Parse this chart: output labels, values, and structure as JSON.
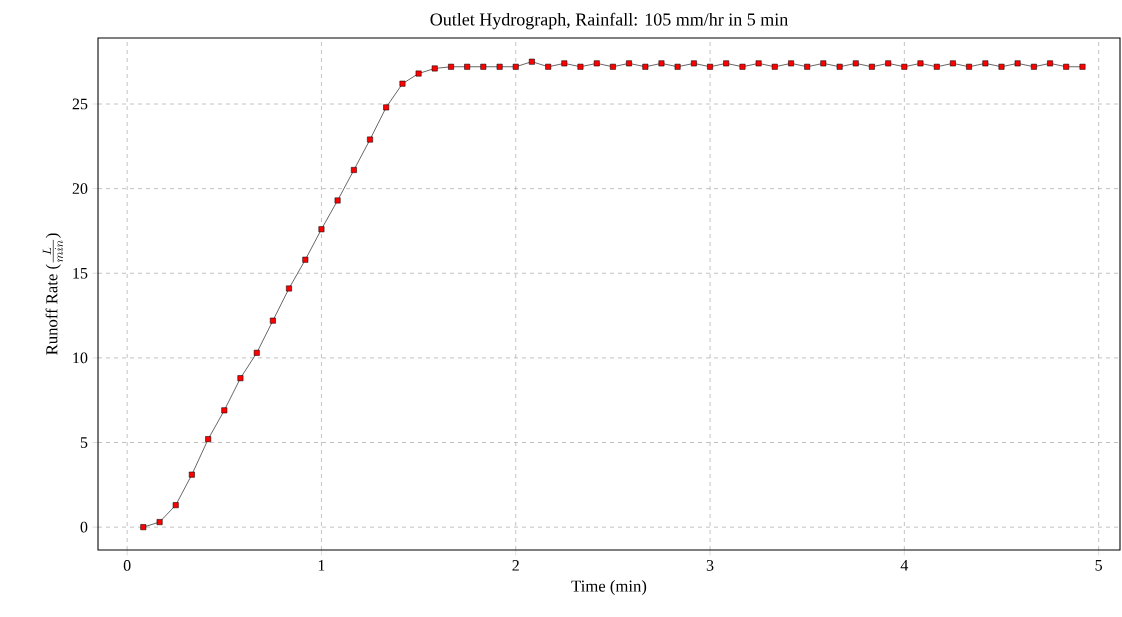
{
  "chart_data": {
    "type": "line",
    "title": "Outlet Hydrograph, Rainfall: 105 mm/hr in 5 min",
    "xlabel": "Time (min)",
    "ylabel": "\\text{Runoff Rate (}\\frac{L}{min}\\text{)}",
    "x": [
      0.083,
      0.167,
      0.25,
      0.333,
      0.417,
      0.5,
      0.583,
      0.667,
      0.75,
      0.833,
      0.917,
      1.0,
      1.083,
      1.167,
      1.25,
      1.333,
      1.417,
      1.5,
      1.583,
      1.667,
      1.75,
      1.833,
      1.917,
      2.0,
      2.083,
      2.167,
      2.25,
      2.333,
      2.417,
      2.5,
      2.583,
      2.667,
      2.75,
      2.833,
      2.917,
      3.0,
      3.083,
      3.167,
      3.25,
      3.333,
      3.417,
      3.5,
      3.583,
      3.667,
      3.75,
      3.833,
      3.917,
      4.0,
      4.083,
      4.167,
      4.25,
      4.333,
      4.417,
      4.5,
      4.583,
      4.667,
      4.75,
      4.833,
      4.917
    ],
    "series": [
      {
        "color": "#ff0000",
        "values": [
          0,
          0.3,
          1.3,
          3.1,
          5.2,
          6.9,
          8.8,
          10.3,
          12.2,
          14.1,
          15.8,
          17.6,
          19.3,
          21.1,
          22.9,
          24.8,
          26.2,
          26.8,
          27.1,
          27.2,
          27.2,
          27.2,
          27.2,
          27.2,
          27.5,
          27.2,
          27.4,
          27.2,
          27.4,
          27.2,
          27.4,
          27.2,
          27.4,
          27.2,
          27.4,
          27.2,
          27.4,
          27.2,
          27.4,
          27.2,
          27.4,
          27.2,
          27.4,
          27.2,
          27.4,
          27.2,
          27.4,
          27.2,
          27.4,
          27.2,
          27.4,
          27.2,
          27.4,
          27.2,
          27.4,
          27.2,
          27.4,
          27.2,
          27.2
        ]
      }
    ],
    "xlim": [
      -0.15,
      5.11
    ],
    "ylim": [
      -1.35,
      28.9
    ],
    "xticks": [
      0,
      1,
      2,
      3,
      4,
      5
    ],
    "yticks": [
      0,
      5,
      10,
      15,
      20,
      25
    ],
    "grid": true,
    "marker": "square",
    "line_style": "solid"
  }
}
